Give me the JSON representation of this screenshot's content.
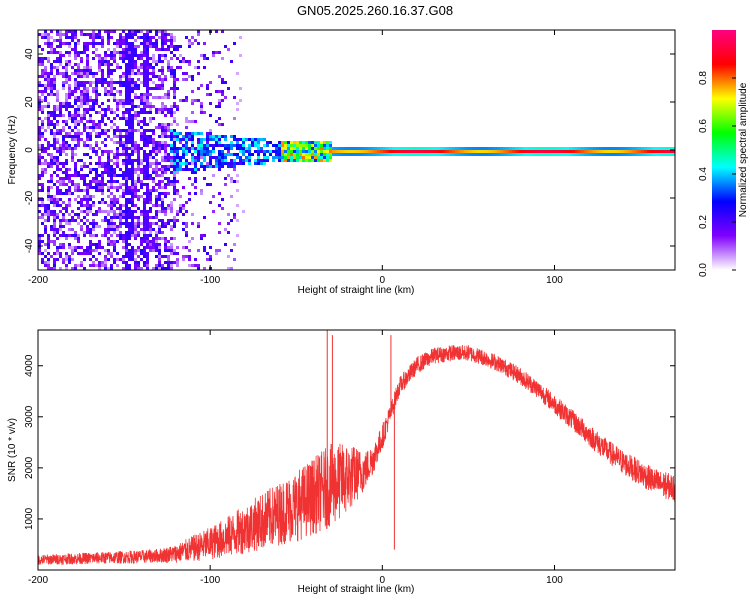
{
  "title": "GN05.2025.260.16.37.G08",
  "chart_data": [
    {
      "type": "heatmap",
      "panel": "spectrogram",
      "xlabel": "Height of straight line (km)",
      "ylabel": "Frequency (Hz)",
      "xlim": [
        -200,
        170
      ],
      "ylim": [
        -50,
        50
      ],
      "xticks": [
        -200,
        -100,
        0,
        100
      ],
      "xtick_labels": [
        "-200",
        "-100",
        "0",
        "100"
      ],
      "yticks": [
        -40,
        -20,
        0,
        20,
        40
      ],
      "ytick_labels": [
        "-40",
        "-20",
        "0",
        "20",
        "40"
      ],
      "colorbar": {
        "label": "Normalized spectral amplitude",
        "range": [
          0,
          1
        ],
        "ticks": [
          0.0,
          0.2,
          0.4,
          0.6,
          0.8
        ],
        "tick_labels": [
          "0.0",
          "0.2",
          "0.4",
          "0.6",
          "0.8"
        ],
        "colormap_stops": [
          "#ffffff",
          "#8000ff",
          "#0000ff",
          "#00ffff",
          "#00ff00",
          "#ffff00",
          "#ff0000",
          "#ff0080"
        ]
      },
      "description_regions": [
        {
          "x_range": [
            -200,
            -85
          ],
          "f_range": [
            -50,
            50
          ],
          "level": 0.15
        },
        {
          "x_range": [
            -120,
            -60
          ],
          "f_range": [
            -8,
            10
          ],
          "level": 0.35
        },
        {
          "x_range": [
            -60,
            -30
          ],
          "f_range": [
            -4,
            4
          ],
          "level": 0.6
        },
        {
          "x_range": [
            -30,
            170
          ],
          "f_range": [
            -2,
            2
          ],
          "level": 0.85
        }
      ],
      "carrier_frequency_hz": 0
    },
    {
      "type": "line",
      "panel": "snr",
      "xlabel": "Height of straight line (km)",
      "ylabel": "SNR (10 * v/v)",
      "xlim": [
        -200,
        170
      ],
      "ylim": [
        0,
        4700
      ],
      "xticks": [
        -200,
        -100,
        0,
        100
      ],
      "xtick_labels": [
        "-200",
        "-100",
        "0",
        "100"
      ],
      "yticks": [
        1000,
        2000,
        3000,
        4000
      ],
      "ytick_labels": [
        "1000",
        "2000",
        "3000",
        "4000"
      ],
      "series": [
        {
          "name": "SNR",
          "color": "#f03232",
          "x": [
            -200,
            -180,
            -160,
            -140,
            -130,
            -120,
            -110,
            -100,
            -90,
            -80,
            -70,
            -60,
            -50,
            -40,
            -30,
            -20,
            -10,
            -5,
            0,
            5,
            10,
            20,
            30,
            40,
            50,
            60,
            70,
            80,
            90,
            100,
            110,
            120,
            130,
            140,
            150,
            160,
            170
          ],
          "y": [
            200,
            220,
            240,
            260,
            280,
            320,
            420,
            520,
            650,
            800,
            950,
            1100,
            1250,
            1450,
            1650,
            1800,
            1950,
            2200,
            2600,
            3100,
            3600,
            4000,
            4200,
            4250,
            4250,
            4150,
            4000,
            3800,
            3550,
            3250,
            2950,
            2650,
            2350,
            2100,
            1900,
            1700,
            1600
          ],
          "noise": [
            100,
            110,
            120,
            130,
            140,
            180,
            260,
            320,
            400,
            480,
            560,
            620,
            700,
            760,
            820,
            700,
            380,
            300,
            250,
            200,
            180,
            170,
            160,
            160,
            160,
            160,
            160,
            170,
            180,
            190,
            200,
            220,
            230,
            240,
            250,
            260,
            270
          ]
        }
      ],
      "spikes": [
        {
          "x": -32,
          "y": 4700
        },
        {
          "x": -29,
          "y": 4600
        },
        {
          "x": 5,
          "y": 4600
        },
        {
          "x": 7,
          "y": 400
        }
      ]
    }
  ]
}
